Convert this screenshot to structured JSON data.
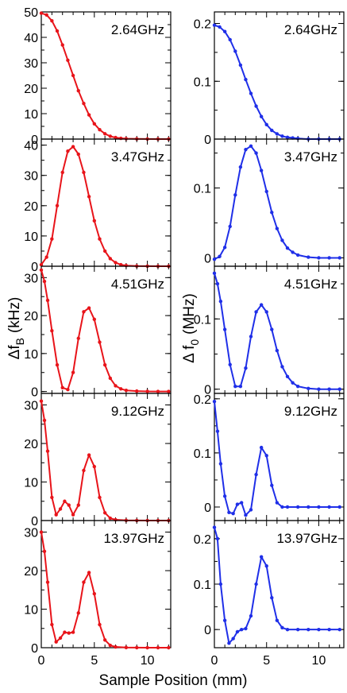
{
  "figure": {
    "xlabel": "Sample Position (mm)",
    "ylabel_left_main": "Δf",
    "ylabel_left_sub": "B",
    "ylabel_left_unit": "(kHz)",
    "ylabel_right_main": "Δ f",
    "ylabel_right_sub": "0",
    "ylabel_right_unit": "(MHz)",
    "x_ticks": [
      "0",
      "5",
      "10"
    ],
    "colors": {
      "left": "#e8141a",
      "right": "#1f2fe8"
    }
  },
  "chart_data": [
    {
      "type": "line",
      "panel": "left",
      "frequency": "2.64GHz",
      "xlim": [
        0,
        12.2
      ],
      "ylim": [
        0,
        50
      ],
      "yticks": [
        0,
        10,
        20,
        30,
        40,
        50
      ],
      "x": [
        0,
        0.5,
        1,
        1.5,
        2,
        2.5,
        3,
        3.5,
        4,
        4.5,
        5,
        5.5,
        6,
        6.5,
        7,
        7.5,
        8,
        9,
        10,
        11,
        12
      ],
      "y": [
        49.5,
        48.8,
        46.5,
        42.5,
        37,
        31,
        25,
        19,
        14,
        9.5,
        6,
        3.7,
        2.1,
        1.1,
        0.6,
        0.3,
        0.15,
        0.05,
        0.02,
        0.01,
        0
      ]
    },
    {
      "type": "line",
      "panel": "left",
      "frequency": "3.47GHz",
      "xlim": [
        0,
        12.2
      ],
      "ylim": [
        0,
        42
      ],
      "yticks": [
        0,
        10,
        20,
        30,
        40
      ],
      "x": [
        0,
        0.5,
        1,
        1.5,
        2,
        2.5,
        3,
        3.5,
        4,
        4.5,
        5,
        5.5,
        6,
        6.5,
        7,
        7.5,
        8,
        9,
        10,
        11,
        12
      ],
      "y": [
        0.5,
        3,
        9,
        20,
        31,
        38,
        39.5,
        37,
        31,
        23,
        15,
        9,
        5,
        2.5,
        1.2,
        0.5,
        0.2,
        0.05,
        0.02,
        0,
        0
      ]
    },
    {
      "type": "line",
      "panel": "left",
      "frequency": "4.51GHz",
      "xlim": [
        0,
        12.2
      ],
      "ylim": [
        -0.5,
        33
      ],
      "yticks": [
        0,
        10,
        20,
        30
      ],
      "x": [
        0,
        0.3,
        0.6,
        1,
        1.5,
        2,
        2.5,
        3,
        3.5,
        4,
        4.5,
        5,
        5.5,
        6,
        6.5,
        7,
        7.5,
        8,
        9,
        10,
        11,
        12
      ],
      "y": [
        32,
        29,
        24,
        16,
        7,
        1,
        0.5,
        5,
        14,
        21,
        22,
        19,
        13,
        7,
        3.5,
        1.5,
        0.7,
        0.3,
        0.1,
        0.03,
        0,
        0
      ]
    },
    {
      "type": "line",
      "panel": "left",
      "frequency": "9.12GHz",
      "xlim": [
        0,
        12.2
      ],
      "ylim": [
        0,
        33
      ],
      "yticks": [
        0,
        10,
        20,
        30
      ],
      "x": [
        0,
        0.3,
        0.6,
        1,
        1.4,
        1.8,
        2.2,
        2.6,
        3,
        3.5,
        4,
        4.5,
        5,
        5.5,
        6,
        6.5,
        7,
        8,
        9,
        10,
        11,
        12
      ],
      "y": [
        31,
        26,
        18,
        6,
        1.5,
        3,
        5,
        4,
        1.5,
        4,
        13,
        17,
        14,
        6,
        2,
        0.6,
        0.2,
        0.05,
        0.02,
        0,
        0,
        0
      ]
    },
    {
      "type": "line",
      "panel": "left",
      "frequency": "13.97GHz",
      "xlim": [
        0,
        12.2
      ],
      "ylim": [
        0,
        33
      ],
      "yticks": [
        0,
        10,
        20,
        30
      ],
      "x": [
        0,
        0.3,
        0.6,
        1,
        1.4,
        1.8,
        2.2,
        2.6,
        3,
        3.5,
        4,
        4.5,
        5,
        5.5,
        6,
        6.5,
        7,
        8,
        9,
        10,
        11,
        12
      ],
      "y": [
        30,
        25,
        17,
        6,
        1.5,
        2.5,
        4,
        3.8,
        4,
        9,
        17,
        19.5,
        14,
        6,
        2,
        0.6,
        0.2,
        0.05,
        0.02,
        0,
        0,
        0
      ]
    },
    {
      "type": "line",
      "panel": "right",
      "frequency": "2.64GHz",
      "xlim": [
        0,
        12.4
      ],
      "ylim": [
        0,
        0.22
      ],
      "yticks": [
        0,
        0.1,
        0.2
      ],
      "yticklabels": [
        "0",
        "0.1",
        "0.2"
      ],
      "x": [
        0,
        0.5,
        1,
        1.5,
        2,
        2.5,
        3,
        3.5,
        4,
        4.5,
        5,
        5.5,
        6,
        6.5,
        7,
        7.5,
        8,
        9,
        10,
        11,
        12
      ],
      "y": [
        0.197,
        0.194,
        0.186,
        0.172,
        0.152,
        0.128,
        0.103,
        0.079,
        0.057,
        0.039,
        0.025,
        0.015,
        0.009,
        0.005,
        0.003,
        0.002,
        0.001,
        0,
        0,
        0,
        0
      ]
    },
    {
      "type": "line",
      "panel": "right",
      "frequency": "3.47GHz",
      "xlim": [
        0,
        12.4
      ],
      "ylim": [
        -0.012,
        0.17
      ],
      "yticks": [
        0,
        0.1
      ],
      "yticklabels": [
        "0",
        "0.1"
      ],
      "x": [
        0,
        0.5,
        1,
        1.5,
        2,
        2.5,
        3,
        3.5,
        4,
        4.5,
        5,
        5.5,
        6,
        6.5,
        7,
        7.5,
        8,
        9,
        10,
        11,
        12
      ],
      "y": [
        -0.002,
        0.002,
        0.015,
        0.045,
        0.09,
        0.13,
        0.155,
        0.16,
        0.15,
        0.125,
        0.095,
        0.065,
        0.042,
        0.025,
        0.014,
        0.008,
        0.004,
        0.001,
        0,
        0,
        0
      ]
    },
    {
      "type": "line",
      "panel": "right",
      "frequency": "4.51GHz",
      "xlim": [
        0,
        12.4
      ],
      "ylim": [
        -0.006,
        0.175
      ],
      "yticks": [
        0,
        0.1
      ],
      "yticklabels": [
        "0",
        "0.1"
      ],
      "x": [
        0,
        0.3,
        0.6,
        1,
        1.5,
        2,
        2.5,
        3,
        3.5,
        4,
        4.5,
        5,
        5.5,
        6,
        6.5,
        7,
        7.5,
        8,
        9,
        10,
        11,
        12
      ],
      "y": [
        0.165,
        0.15,
        0.125,
        0.085,
        0.035,
        0.004,
        0.004,
        0.03,
        0.075,
        0.11,
        0.12,
        0.11,
        0.085,
        0.055,
        0.032,
        0.018,
        0.009,
        0.004,
        0.001,
        0,
        0,
        0
      ]
    },
    {
      "type": "line",
      "panel": "right",
      "frequency": "9.12GHz",
      "xlim": [
        0,
        12.4
      ],
      "ylim": [
        -0.025,
        0.21
      ],
      "yticks": [
        0,
        0.1,
        0.2
      ],
      "yticklabels": [
        "0",
        "0.1",
        "0.2"
      ],
      "x": [
        0,
        0.3,
        0.6,
        1,
        1.4,
        1.8,
        2.2,
        2.6,
        3,
        3.5,
        4,
        4.5,
        5,
        5.5,
        6,
        6.5,
        7,
        8,
        9,
        10,
        11,
        12
      ],
      "y": [
        0.195,
        0.14,
        0.08,
        0.02,
        -0.01,
        -0.012,
        0.005,
        0.008,
        -0.015,
        -0.005,
        0.06,
        0.11,
        0.095,
        0.04,
        0.008,
        0,
        0,
        0,
        0,
        0,
        0,
        0
      ]
    },
    {
      "type": "line",
      "panel": "right",
      "frequency": "13.97GHz",
      "xlim": [
        0,
        12.4
      ],
      "ylim": [
        -0.04,
        0.24
      ],
      "yticks": [
        0,
        0.1,
        0.2
      ],
      "yticklabels": [
        "0",
        "0.1",
        "0.2"
      ],
      "x": [
        0,
        0.3,
        0.6,
        1,
        1.4,
        1.8,
        2.2,
        2.6,
        3,
        3.5,
        4,
        4.5,
        5,
        5.5,
        6,
        6.5,
        7,
        8,
        9,
        10,
        11,
        12
      ],
      "y": [
        0.225,
        0.2,
        0.1,
        0.02,
        -0.03,
        -0.02,
        -0.005,
        0,
        0.002,
        0.03,
        0.1,
        0.16,
        0.14,
        0.07,
        0.02,
        0.004,
        0,
        0,
        0,
        0,
        0,
        0
      ]
    }
  ]
}
